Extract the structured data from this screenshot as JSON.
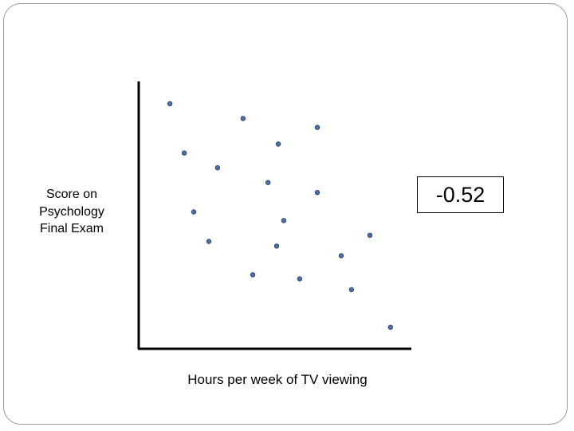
{
  "chart_data": {
    "type": "scatter",
    "title": "",
    "xlabel": "Hours per week of TV viewing",
    "ylabel_lines": [
      "Score on",
      "Psychology",
      "Final Exam"
    ],
    "annotation": "-0.52",
    "xlim": [
      0,
      100
    ],
    "ylim": [
      0,
      100
    ],
    "grid": false,
    "point_color": "#4f6fa8",
    "points": [
      {
        "x": 11.2,
        "y": 91.1
      },
      {
        "x": 16.5,
        "y": 72.8
      },
      {
        "x": 20.0,
        "y": 50.9
      },
      {
        "x": 25.6,
        "y": 39.9
      },
      {
        "x": 28.8,
        "y": 67.3
      },
      {
        "x": 38.2,
        "y": 85.6
      },
      {
        "x": 41.8,
        "y": 27.5
      },
      {
        "x": 47.4,
        "y": 61.8
      },
      {
        "x": 50.6,
        "y": 38.2
      },
      {
        "x": 51.2,
        "y": 76.1
      },
      {
        "x": 53.2,
        "y": 47.7
      },
      {
        "x": 59.1,
        "y": 26.0
      },
      {
        "x": 65.6,
        "y": 82.3
      },
      {
        "x": 65.6,
        "y": 58.1
      },
      {
        "x": 74.4,
        "y": 34.6
      },
      {
        "x": 78.2,
        "y": 22.0
      },
      {
        "x": 85.0,
        "y": 42.2
      },
      {
        "x": 92.6,
        "y": 8.0
      }
    ]
  }
}
